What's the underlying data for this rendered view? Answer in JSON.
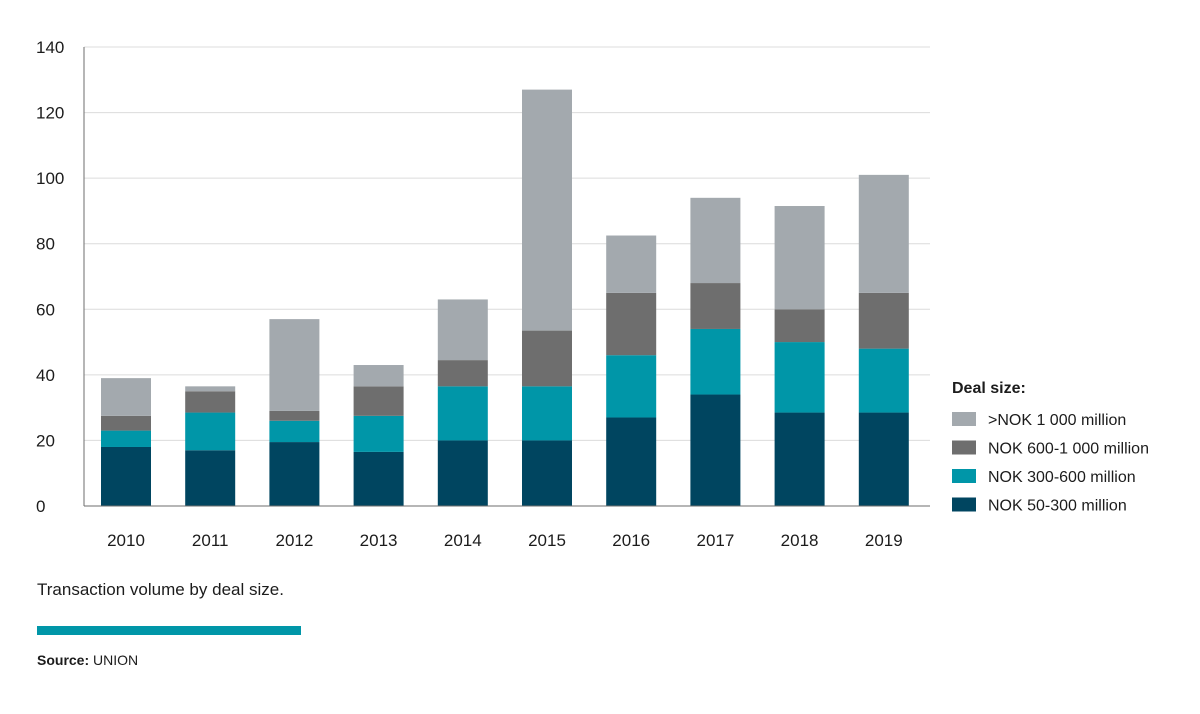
{
  "chart_data": {
    "type": "bar",
    "stacked": true,
    "categories": [
      "2010",
      "2011",
      "2012",
      "2013",
      "2014",
      "2015",
      "2016",
      "2017",
      "2018",
      "2019"
    ],
    "series": [
      {
        "name": "NOK 50-300 million",
        "color": "#004560",
        "values": [
          18,
          17,
          19.5,
          16.5,
          20,
          20,
          27,
          34,
          28.5,
          28.5
        ]
      },
      {
        "name": "NOK 300-600 million",
        "color": "#0096a8",
        "values": [
          5,
          11.5,
          6.5,
          11,
          16.5,
          16.5,
          19,
          20,
          21.5,
          19.5
        ]
      },
      {
        "name": "NOK 600-1 000 million",
        "color": "#6e6e6e",
        "values": [
          4.5,
          6.5,
          3,
          9,
          8,
          17,
          19,
          14,
          10,
          17
        ]
      },
      {
        "name": ">NOK 1 000 million",
        "color": "#a3a9ae",
        "values": [
          11.5,
          1.5,
          28,
          6.5,
          18.5,
          73.5,
          17.5,
          26,
          31.5,
          36
        ]
      }
    ],
    "ylim": [
      0,
      140
    ],
    "yticks": [
      0,
      20,
      40,
      60,
      80,
      100,
      120,
      140
    ],
    "grid": true,
    "legend_title": "Deal size:",
    "legend_placement": "right",
    "legend_order": [
      ">NOK 1 000 million",
      "NOK 600-1 000 million",
      "NOK 300-600 million",
      "NOK 50-300 million"
    ],
    "caption": "Transaction volume by deal size.",
    "source_label": "Source:",
    "source_value": "UNION"
  },
  "colors": {
    "accent": "#0096a8",
    "grid": "#dcdcdc",
    "axis": "#6e6e6e"
  }
}
